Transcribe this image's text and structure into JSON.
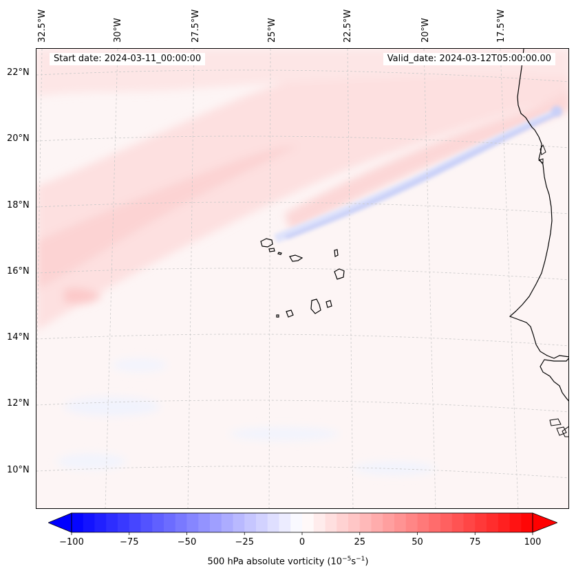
{
  "header": {
    "start_date": "Start date: 2024-03-11_00:00:00",
    "valid_date": "Valid_date: 2024-03-12T05:00:00.00"
  },
  "map": {
    "longitude_labels": [
      "32.5°W",
      "30°W",
      "27.5°W",
      "25°W",
      "22.5°W",
      "20°W",
      "17.5°W"
    ],
    "latitude_labels": [
      "22°N",
      "20°N",
      "18°N",
      "16°N",
      "14°N",
      "12°N",
      "10°N"
    ],
    "field": "500 hPa absolute vorticity",
    "colormap": "bwr",
    "gridlines": "dashed, light gray"
  },
  "colorbar": {
    "ticks": [
      "−100",
      "−75",
      "−50",
      "−25",
      "0",
      "25",
      "50",
      "75",
      "100"
    ],
    "range": [
      -100,
      100
    ],
    "label_prefix": "500 hPa absolute vorticity (10",
    "label_exp1": "−5",
    "label_mid": "s",
    "label_exp2": "−1",
    "label_suffix": ")",
    "color_min": "#0000ff",
    "color_mid": "#ffffff",
    "color_max": "#ff0000"
  }
}
